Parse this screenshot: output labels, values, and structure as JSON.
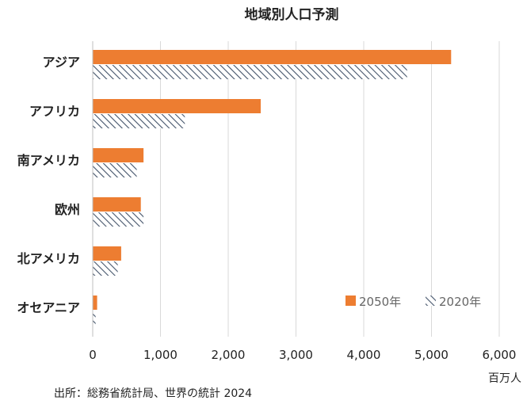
{
  "chart_data": {
    "type": "bar",
    "orientation": "horizontal",
    "title": "地域別人口予測",
    "categories": [
      "アジア",
      "アフリカ",
      "南アメリカ",
      "欧州",
      "北アメリカ",
      "オセアニア"
    ],
    "series": [
      {
        "name": "2050年",
        "values": [
          5290,
          2480,
          750,
          710,
          420,
          65
        ],
        "color": "#ED7D31",
        "pattern": "solid"
      },
      {
        "name": "2020年",
        "values": [
          4640,
          1360,
          650,
          750,
          370,
          43
        ],
        "color": "#44546A",
        "pattern": "diagonal-hatch"
      }
    ],
    "x_axis": {
      "min": 0,
      "max": 6000,
      "ticks": [
        "0",
        "1,000",
        "2,000",
        "3,000",
        "4,000",
        "5,000",
        "6,000"
      ],
      "tick_values": [
        0,
        1000,
        2000,
        3000,
        4000,
        5000,
        6000
      ],
      "unit": "百万人"
    },
    "grid": true,
    "legend_position": "bottom-right, inside plot"
  },
  "source": "出所：総務省統計局、世界の統計 2024"
}
